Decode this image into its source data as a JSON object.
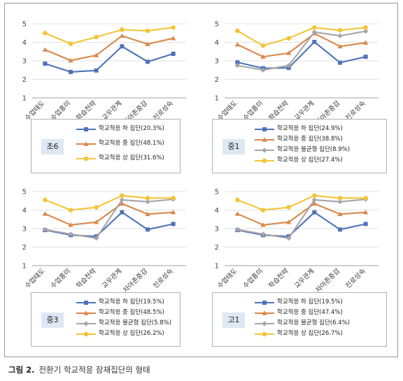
{
  "caption": {
    "label": "그림 2.",
    "text": "전환기 학교적응 잠재집단의 형태"
  },
  "colors": {
    "하": "#4f73b8",
    "중": "#d9884a",
    "불균형": "#a6a6a6",
    "상": "#f2c53a"
  },
  "chart_data": [
    {
      "id": "p1",
      "type": "line",
      "tag": "초6",
      "categories": [
        "수업태도",
        "수업흥미",
        "학습전략",
        "교우관계",
        "자아존중감",
        "진로성숙"
      ],
      "ylim": [
        1,
        5
      ],
      "yticks": [
        "1",
        "2",
        "3",
        "4",
        "5"
      ],
      "grid": true,
      "series": [
        {
          "key": "하",
          "name": "학교적응 하 집단(20.3%)",
          "values": [
            2.85,
            2.4,
            2.48,
            3.78,
            2.95,
            3.38
          ]
        },
        {
          "key": "중",
          "name": "학교적응 중 집단(48.1%)",
          "values": [
            3.6,
            3.02,
            3.3,
            4.35,
            3.9,
            4.22
          ]
        },
        {
          "key": "상",
          "name": "학교적응 상 집단(31.6%)",
          "values": [
            4.5,
            3.92,
            4.28,
            4.68,
            4.62,
            4.8
          ]
        }
      ]
    },
    {
      "id": "p2",
      "type": "line",
      "tag": "중1",
      "categories": [
        "수업태도",
        "수업흥미",
        "학습전략",
        "교우관계",
        "자아존중감",
        "진로성숙"
      ],
      "ylim": [
        1,
        5
      ],
      "yticks": [
        "1",
        "2",
        "3",
        "4",
        "5"
      ],
      "grid": true,
      "series": [
        {
          "key": "하",
          "name": "학교적응 하 집단(24.9%)",
          "values": [
            2.92,
            2.6,
            2.62,
            4.02,
            2.9,
            3.22
          ]
        },
        {
          "key": "중",
          "name": "학교적응 중 집단(38.8%)",
          "values": [
            3.88,
            3.22,
            3.42,
            4.48,
            3.78,
            3.98
          ]
        },
        {
          "key": "불균형",
          "name": "학교적응 불균형 집단(8.9%)",
          "values": [
            2.75,
            2.5,
            2.75,
            4.55,
            4.35,
            4.6
          ]
        },
        {
          "key": "상",
          "name": "학교적응 상 집단(27.4%)",
          "values": [
            4.62,
            3.82,
            4.22,
            4.8,
            4.65,
            4.8
          ]
        }
      ]
    },
    {
      "id": "p3",
      "type": "line",
      "tag": "중3",
      "categories": [
        "수업태도",
        "수업흥미",
        "학습전략",
        "교우관계",
        "자아존중감",
        "진로성숙"
      ],
      "ylim": [
        1,
        5
      ],
      "yticks": [
        "1",
        "2",
        "3",
        "4",
        "5"
      ],
      "grid": true,
      "series": [
        {
          "key": "하",
          "name": "학교적응 하 집단(19.5%)",
          "values": [
            2.92,
            2.65,
            2.58,
            3.88,
            2.95,
            3.25
          ]
        },
        {
          "key": "중",
          "name": "학교적응 중 집단(48.5%)",
          "values": [
            3.8,
            3.2,
            3.35,
            4.35,
            3.78,
            3.88
          ]
        },
        {
          "key": "불균형",
          "name": "학교적응 불균형 집단(5.8%)",
          "values": [
            2.95,
            2.7,
            2.48,
            4.55,
            4.45,
            4.58
          ]
        },
        {
          "key": "상",
          "name": "학교적응 상 집단(26.2%)",
          "values": [
            4.55,
            4.0,
            4.15,
            4.78,
            4.65,
            4.65
          ]
        }
      ]
    },
    {
      "id": "p4",
      "type": "line",
      "tag": "고1",
      "categories": [
        "수업태도",
        "수업흥미",
        "학습전략",
        "교우관계",
        "자아존중감",
        "진로성숙"
      ],
      "ylim": [
        1,
        5
      ],
      "yticks": [
        "1",
        "2",
        "3",
        "4",
        "5"
      ],
      "grid": true,
      "series": [
        {
          "key": "하",
          "name": "학교적응 하 집단(19.5%)",
          "values": [
            2.92,
            2.65,
            2.58,
            3.88,
            2.95,
            3.25
          ]
        },
        {
          "key": "중",
          "name": "학교적응 중 집단(47.4%)",
          "values": [
            3.8,
            3.2,
            3.35,
            4.35,
            3.78,
            3.88
          ]
        },
        {
          "key": "불균형",
          "name": "학교적응 불균형 집단(6.4%)",
          "values": [
            2.95,
            2.7,
            2.48,
            4.55,
            4.45,
            4.58
          ]
        },
        {
          "key": "상",
          "name": "학교적응 상 집단(26.7%)",
          "values": [
            4.55,
            4.0,
            4.15,
            4.78,
            4.65,
            4.65
          ]
        }
      ]
    }
  ]
}
